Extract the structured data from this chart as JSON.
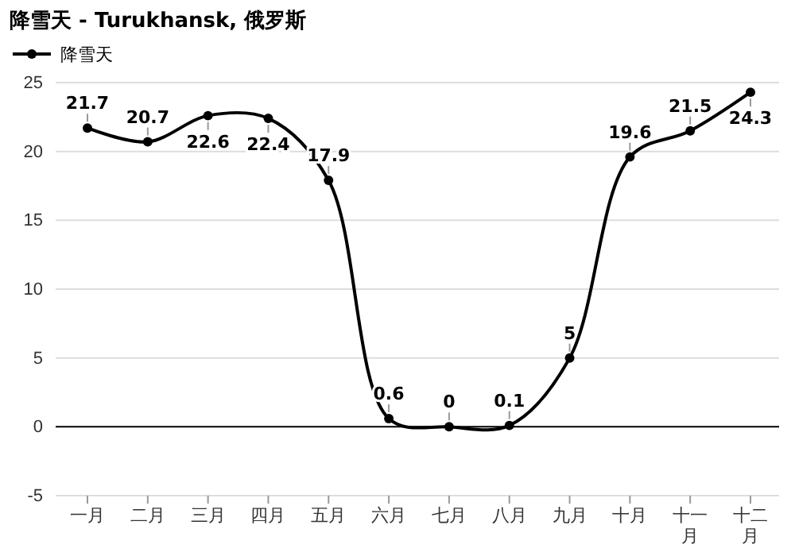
{
  "chart_data": {
    "type": "line",
    "title": "降雪天 - Turukhansk, 俄罗斯",
    "categories": [
      "一月",
      "二月",
      "三月",
      "四月",
      "五月",
      "六月",
      "七月",
      "八月",
      "九月",
      "十月",
      "十一月",
      "十二月"
    ],
    "series": [
      {
        "name": "降雪天",
        "color": "#000000",
        "values": [
          21.7,
          20.7,
          22.6,
          22.4,
          17.9,
          0.6,
          0,
          0.1,
          5,
          19.6,
          21.5,
          24.3
        ]
      }
    ],
    "ylim": [
      -5,
      25
    ],
    "yticks": [
      -5,
      0,
      5,
      10,
      15,
      20,
      25
    ],
    "grid": "y",
    "legend": "top left",
    "marker": "circle",
    "line_style": "solid",
    "data_labels": true
  }
}
